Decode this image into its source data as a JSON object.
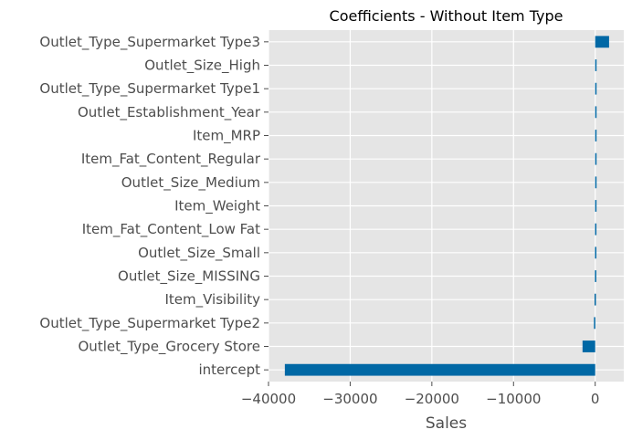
{
  "chart_data": {
    "type": "bar",
    "orientation": "horizontal",
    "title": "Coefficients - Without Item Type",
    "xlabel": "Sales",
    "ylabel": "",
    "xlim": [
      -40000,
      3500
    ],
    "xticks": [
      -40000,
      -30000,
      -20000,
      -10000,
      0
    ],
    "xtick_labels": [
      "−40000",
      "−30000",
      "−20000",
      "−10000",
      "0"
    ],
    "grid": true,
    "bar_color": "#0068a5",
    "background_color": "#e5e5e5",
    "categories": [
      "Outlet_Type_Supermarket Type3",
      "Outlet_Size_High",
      "Outlet_Type_Supermarket Type1",
      "Outlet_Establishment_Year",
      "Item_MRP",
      "Item_Fat_Content_Regular",
      "Outlet_Size_Medium",
      "Item_Weight",
      "Item_Fat_Content_Low Fat",
      "Outlet_Size_Small",
      "Outlet_Size_MISSING",
      "Item_Visibility",
      "Outlet_Type_Supermarket Type2",
      "Outlet_Type_Grocery Store",
      "intercept"
    ],
    "values": [
      1700,
      150,
      120,
      40,
      20,
      15,
      10,
      -5,
      -15,
      -20,
      -30,
      -80,
      -150,
      -1550,
      -38000
    ]
  }
}
